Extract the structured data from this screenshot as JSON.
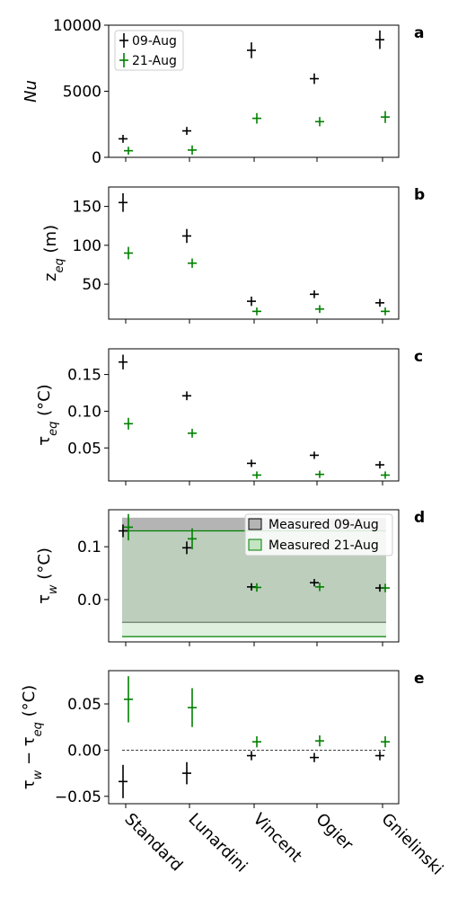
{
  "chart_data": {
    "type": "scatter",
    "categories": [
      "Standard",
      "Lunardini",
      "Vincent",
      "Ogier",
      "Gnielinski"
    ],
    "colors": {
      "09-Aug": "#000000",
      "21-Aug": "#008000"
    },
    "legend": {
      "location": "top-left",
      "entries": [
        "09-Aug",
        "21-Aug"
      ]
    },
    "panels": [
      {
        "label": "a",
        "ylabel": "Nu",
        "ylim": [
          0,
          10000
        ],
        "yticks": [
          0,
          5000,
          10000
        ],
        "ytick_labels": [
          "0",
          "5000",
          "10000"
        ],
        "legend_labels": [
          "09-Aug",
          "21-Aug"
        ],
        "series": [
          {
            "name": "09-Aug",
            "values": [
              1400,
              2000,
              8100,
              5950,
              8900
            ],
            "err": [
              300,
              300,
              600,
              400,
              700
            ]
          },
          {
            "name": "21-Aug",
            "values": [
              500,
              550,
              2950,
              2700,
              3050
            ],
            "err": [
              300,
              350,
              400,
              350,
              450
            ]
          }
        ]
      },
      {
        "label": "b",
        "ylabel": "z_eq (m)",
        "ylim": [
          5,
          175
        ],
        "yticks": [
          50,
          100,
          150
        ],
        "ytick_labels": [
          "50",
          "100",
          "150"
        ],
        "series": [
          {
            "name": "09-Aug",
            "values": [
              155,
              112,
              28,
              37,
              26
            ],
            "err": [
              12,
              9,
              6,
              5,
              5
            ]
          },
          {
            "name": "21-Aug",
            "values": [
              90,
              77,
              15,
              18,
              15
            ],
            "err": [
              8,
              6,
              5,
              5,
              5
            ]
          }
        ]
      },
      {
        "label": "c",
        "ylabel": "τ_eq (°C)",
        "ylim": [
          0.005,
          0.185
        ],
        "yticks": [
          0.05,
          0.1,
          0.15
        ],
        "ytick_labels": [
          "0.05",
          "0.10",
          "0.15"
        ],
        "series": [
          {
            "name": "09-Aug",
            "values": [
              0.167,
              0.121,
              0.029,
              0.04,
              0.027
            ],
            "err": [
              0.01,
              0.006,
              0.005,
              0.005,
              0.005
            ]
          },
          {
            "name": "21-Aug",
            "values": [
              0.083,
              0.07,
              0.013,
              0.014,
              0.013
            ],
            "err": [
              0.008,
              0.006,
              0.005,
              0.005,
              0.005
            ]
          }
        ]
      },
      {
        "label": "d",
        "ylabel": "τ_w (°C)",
        "ylim": [
          -0.08,
          0.17
        ],
        "yticks": [
          0.0,
          0.1
        ],
        "ytick_labels": [
          "0.0",
          "0.1"
        ],
        "legend_labels": [
          "Measured 09-Aug",
          "Measured 21-Aug"
        ],
        "measured": [
          {
            "name": "Measured 09-Aug",
            "range": [
              -0.043,
              0.155
            ],
            "line": -0.043,
            "fill": "#b4b4b4",
            "edge": "#000000"
          },
          {
            "name": "Measured 21-Aug",
            "range": [
              -0.07,
              0.13
            ],
            "line": -0.07,
            "fill": "#c4e4c4",
            "edge": "#008000"
          }
        ],
        "series": [
          {
            "name": "09-Aug",
            "values": [
              0.13,
              0.098,
              0.024,
              0.032,
              0.022
            ],
            "err": [
              0.012,
              0.012,
              0.007,
              0.007,
              0.007
            ]
          },
          {
            "name": "21-Aug",
            "values": [
              0.137,
              0.115,
              0.023,
              0.024,
              0.022
            ],
            "err": [
              0.025,
              0.02,
              0.008,
              0.008,
              0.008
            ]
          }
        ]
      },
      {
        "label": "e",
        "ylabel": "τ_w − τ_eq (°C)",
        "ylim": [
          -0.058,
          0.086
        ],
        "yticks": [
          -0.05,
          0.0,
          0.05
        ],
        "ytick_labels": [
          "−0.05",
          "0.00",
          "0.05"
        ],
        "zero_line": 0,
        "series": [
          {
            "name": "09-Aug",
            "values": [
              -0.034,
              -0.025,
              -0.006,
              -0.008,
              -0.006
            ],
            "err": [
              0.018,
              0.012,
              0.005,
              0.005,
              0.005
            ]
          },
          {
            "name": "21-Aug",
            "values": [
              0.055,
              0.046,
              0.009,
              0.01,
              0.009
            ],
            "err": [
              0.025,
              0.021,
              0.006,
              0.006,
              0.006
            ]
          }
        ]
      }
    ]
  }
}
